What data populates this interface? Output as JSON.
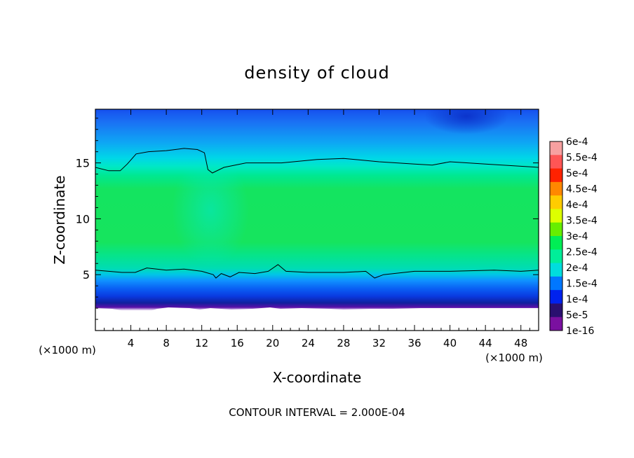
{
  "chart_data": {
    "type": "heatmap",
    "title": "density of cloud",
    "xlabel": "X-coordinate",
    "ylabel": "Z-coordinate",
    "x_unit": "(×1000 m)",
    "x_ticks": [
      4,
      8,
      12,
      16,
      20,
      24,
      28,
      32,
      36,
      40,
      44,
      48
    ],
    "y_ticks": [
      5,
      10,
      15
    ],
    "xlim": [
      0,
      50
    ],
    "ylim": [
      0,
      19.8
    ],
    "footer": "CONTOUR INTERVAL = 2.000E-04",
    "colorbar": {
      "labels": [
        "6e-4",
        "5.5e-4",
        "5e-4",
        "4.5e-4",
        "4e-4",
        "3.5e-4",
        "3e-4",
        "2.5e-4",
        "2e-4",
        "1.5e-4",
        "1e-4",
        "5e-5",
        "1e-16"
      ],
      "colors": [
        "#f7a0a0",
        "#ff5555",
        "#ff2200",
        "#ff8800",
        "#ffcc00",
        "#ddff00",
        "#66ee00",
        "#00ee55",
        "#00ee99",
        "#00dddd",
        "#0077ff",
        "#0022ee",
        "#2a1070",
        "#7a10a0"
      ]
    },
    "contours": [
      {
        "level": "2e-4 (upper)",
        "points": [
          [
            0,
            14.6
          ],
          [
            1.5,
            14.3
          ],
          [
            2.8,
            14.3
          ],
          [
            3.6,
            14.9
          ],
          [
            4.6,
            15.8
          ],
          [
            6,
            16.0
          ],
          [
            8,
            16.1
          ],
          [
            10,
            16.3
          ],
          [
            11.5,
            16.2
          ],
          [
            12.3,
            15.9
          ],
          [
            12.7,
            14.4
          ],
          [
            13.2,
            14.1
          ],
          [
            14.5,
            14.6
          ],
          [
            17,
            15.0
          ],
          [
            21,
            15.0
          ],
          [
            25,
            15.3
          ],
          [
            28,
            15.4
          ],
          [
            32,
            15.1
          ],
          [
            36,
            14.9
          ],
          [
            38,
            14.8
          ],
          [
            40,
            15.1
          ],
          [
            44,
            14.9
          ],
          [
            48,
            14.7
          ],
          [
            50,
            14.6
          ]
        ]
      },
      {
        "level": "2e-4 (lower)",
        "points": [
          [
            0,
            5.4
          ],
          [
            3,
            5.2
          ],
          [
            4.5,
            5.2
          ],
          [
            5.8,
            5.6
          ],
          [
            8,
            5.4
          ],
          [
            10,
            5.5
          ],
          [
            12,
            5.3
          ],
          [
            13.3,
            5.0
          ],
          [
            13.6,
            4.7
          ],
          [
            14.2,
            5.1
          ],
          [
            15.2,
            4.8
          ],
          [
            16.2,
            5.2
          ],
          [
            18,
            5.1
          ],
          [
            19.5,
            5.3
          ],
          [
            20.6,
            5.9
          ],
          [
            21.5,
            5.3
          ],
          [
            24,
            5.2
          ],
          [
            28,
            5.2
          ],
          [
            30.5,
            5.3
          ],
          [
            31.5,
            4.7
          ],
          [
            32.5,
            5.0
          ],
          [
            36,
            5.3
          ],
          [
            40,
            5.3
          ],
          [
            45,
            5.4
          ],
          [
            48,
            5.3
          ],
          [
            50,
            5.4
          ]
        ]
      }
    ],
    "fields": [
      {
        "x": [
          0,
          50
        ],
        "z": [
          17.8,
          19.8
        ],
        "value": "5e-5 to 1e-4"
      },
      {
        "x": [
          0,
          50
        ],
        "z": [
          15.5,
          17.8
        ],
        "value": "1e-4 to 2e-4"
      },
      {
        "x": [
          0,
          50
        ],
        "z": [
          6.5,
          14.5
        ],
        "value": "2.5e-4 to 3e-4"
      },
      {
        "x": [
          0,
          50
        ],
        "z": [
          3.5,
          5.3
        ],
        "value": "5e-5 to 1.5e-4"
      },
      {
        "x": [
          0,
          50
        ],
        "z": [
          1.8,
          2.6
        ],
        "value": "1e-16"
      }
    ]
  }
}
